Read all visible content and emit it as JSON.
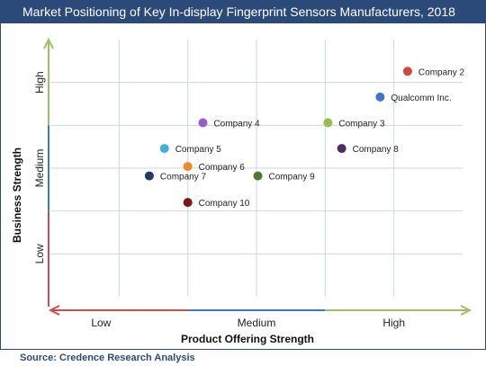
{
  "title": "Market Positioning of Key In-display Fingerprint Sensors Manufacturers, 2018",
  "source": "Source: Credence Research Analysis",
  "chart_data": {
    "type": "scatter",
    "xlabel": "Product Offering Strength",
    "ylabel": "Business Strength",
    "xlim": [
      0,
      3
    ],
    "ylim": [
      0,
      3
    ],
    "x_levels": [
      "Low",
      "Medium",
      "High"
    ],
    "y_levels": [
      "Low",
      "Medium",
      "High"
    ],
    "grid": true,
    "points": [
      {
        "label": "Company 2",
        "x": 2.6,
        "y": 2.63,
        "color": "#d04a3c"
      },
      {
        "label": "Qualcomm Inc.",
        "x": 2.4,
        "y": 2.33,
        "color": "#3a78c7"
      },
      {
        "label": "Company 4",
        "x": 1.11,
        "y": 2.03,
        "color": "#9a5cc6"
      },
      {
        "label": "Company 3",
        "x": 2.02,
        "y": 2.03,
        "color": "#98be4a"
      },
      {
        "label": "Company 5",
        "x": 0.83,
        "y": 1.73,
        "color": "#3fb3d4"
      },
      {
        "label": "Company 8",
        "x": 2.12,
        "y": 1.73,
        "color": "#4b2f63"
      },
      {
        "label": "Company 6",
        "x": 1.0,
        "y": 1.52,
        "color": "#f08a24"
      },
      {
        "label": "Company 7",
        "x": 0.72,
        "y": 1.41,
        "color": "#1f3c63"
      },
      {
        "label": "Company 9",
        "x": 1.51,
        "y": 1.41,
        "color": "#4e7a2e"
      },
      {
        "label": "Company 10",
        "x": 1.0,
        "y": 1.1,
        "color": "#7a1418"
      }
    ]
  },
  "colors": {
    "axis_high": "#9bc06a",
    "axis_medium": "#3a78c7",
    "axis_low": "#c9504a",
    "grid": "#c8d7ea",
    "brand": "#2b4a7a"
  }
}
